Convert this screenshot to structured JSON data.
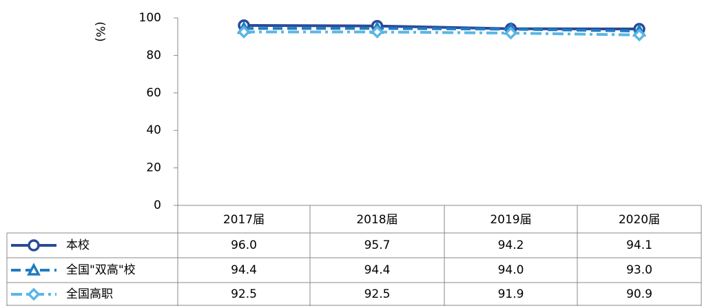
{
  "chart_data": {
    "type": "line",
    "ylabel": "(%)",
    "categories": [
      "2017届",
      "2018届",
      "2019届",
      "2020届"
    ],
    "ylim": [
      0,
      100
    ],
    "yticks": [
      0,
      20,
      40,
      60,
      80,
      100
    ],
    "series": [
      {
        "name": "本校",
        "color": "#2a4a98",
        "dash": "solid",
        "marker": "circle",
        "values": [
          96.0,
          95.7,
          94.2,
          94.1
        ],
        "value_labels": [
          "96.0",
          "95.7",
          "94.2",
          "94.1"
        ]
      },
      {
        "name": "全国\"双高\"校",
        "color": "#1f7cc2",
        "dash": "dashed",
        "marker": "triangle",
        "values": [
          94.4,
          94.4,
          94.0,
          93.0
        ],
        "value_labels": [
          "94.4",
          "94.4",
          "94.0",
          "93.0"
        ]
      },
      {
        "name": "全国高职",
        "color": "#5ab6e6",
        "dash": "dashdot",
        "marker": "diamond",
        "values": [
          92.5,
          92.5,
          91.9,
          90.9
        ],
        "value_labels": [
          "92.5",
          "92.5",
          "91.9",
          "90.9"
        ]
      }
    ]
  }
}
